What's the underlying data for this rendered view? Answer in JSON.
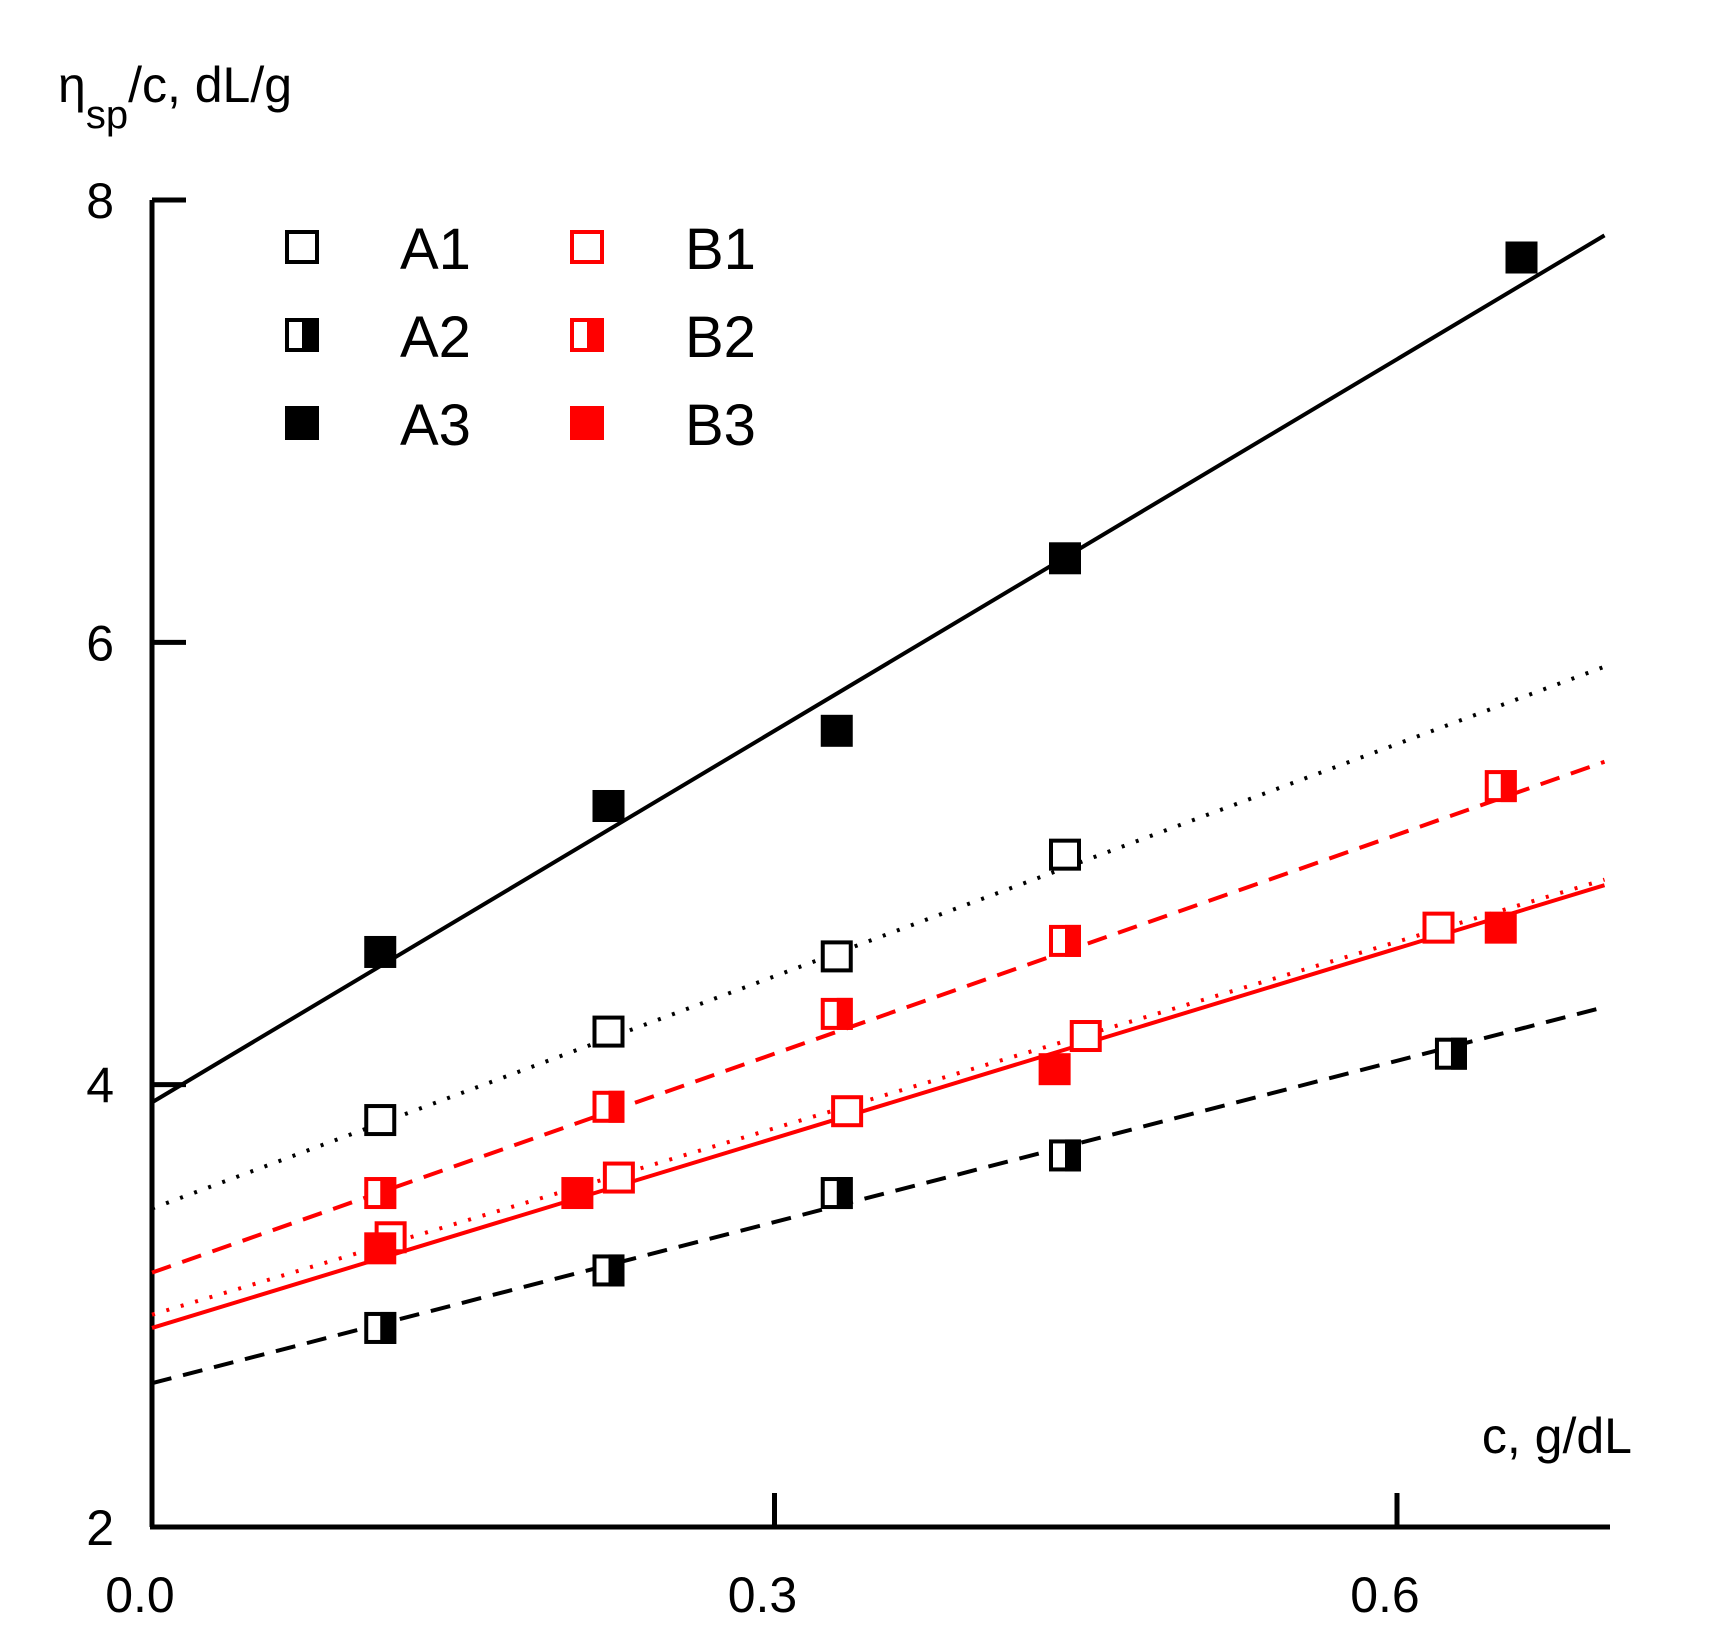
{
  "chart_data": {
    "type": "scatter",
    "title": "",
    "xlabel": "c, g/dL",
    "ylabel": {
      "symbol": "η",
      "subscript": "sp",
      "rest": "/c, dL/g"
    },
    "xlim": [
      0.0,
      0.7
    ],
    "ylim": [
      2,
      8
    ],
    "x_ticks": [
      0.0,
      0.3,
      0.6
    ],
    "x_tick_labels": [
      "0.0",
      "0.3",
      "0.6"
    ],
    "y_ticks": [
      2,
      4,
      6,
      8
    ],
    "y_tick_labels": [
      "2",
      "4",
      "6",
      "8"
    ],
    "grid": false,
    "legend_position": "top-left",
    "series": [
      {
        "name": "A1",
        "color": "#000000",
        "marker": "open-square",
        "line": "dotted",
        "points": [
          [
            0.11,
            3.84
          ],
          [
            0.22,
            4.24
          ],
          [
            0.33,
            4.58
          ],
          [
            0.44,
            5.04
          ]
        ],
        "fit": {
          "intercept": 3.44,
          "slope": 3.5
        }
      },
      {
        "name": "A2",
        "color": "#000000",
        "marker": "half-square",
        "line": "dashed",
        "points": [
          [
            0.11,
            2.9
          ],
          [
            0.22,
            3.16
          ],
          [
            0.33,
            3.51
          ],
          [
            0.44,
            3.68
          ],
          [
            0.626,
            4.14
          ]
        ],
        "fit": {
          "intercept": 2.65,
          "slope": 2.43
        }
      },
      {
        "name": "A3",
        "color": "#000000",
        "marker": "filled-square",
        "line": "solid",
        "points": [
          [
            0.11,
            4.6
          ],
          [
            0.22,
            5.26
          ],
          [
            0.33,
            5.6
          ],
          [
            0.44,
            6.38
          ],
          [
            0.66,
            7.74
          ]
        ],
        "fit": {
          "intercept": 3.92,
          "slope": 5.6
        }
      },
      {
        "name": "B1",
        "color": "#ff0000",
        "marker": "open-square",
        "line": "dotted",
        "points": [
          [
            0.115,
            3.31
          ],
          [
            0.225,
            3.58
          ],
          [
            0.335,
            3.88
          ],
          [
            0.45,
            4.22
          ],
          [
            0.62,
            4.71
          ]
        ],
        "fit": {
          "intercept": 2.96,
          "slope": 2.81
        }
      },
      {
        "name": "B2",
        "color": "#ff0000",
        "marker": "half-square",
        "line": "dashed",
        "points": [
          [
            0.11,
            3.51
          ],
          [
            0.22,
            3.9
          ],
          [
            0.33,
            4.32
          ],
          [
            0.44,
            4.65
          ],
          [
            0.65,
            5.35
          ]
        ],
        "fit": {
          "intercept": 3.15,
          "slope": 3.3
        }
      },
      {
        "name": "B3",
        "color": "#ff0000",
        "marker": "filled-square",
        "line": "solid",
        "points": [
          [
            0.11,
            3.26
          ],
          [
            0.205,
            3.51
          ],
          [
            0.435,
            4.07
          ],
          [
            0.65,
            4.71
          ]
        ],
        "fit": {
          "intercept": 2.9,
          "slope": 2.86
        }
      }
    ]
  }
}
